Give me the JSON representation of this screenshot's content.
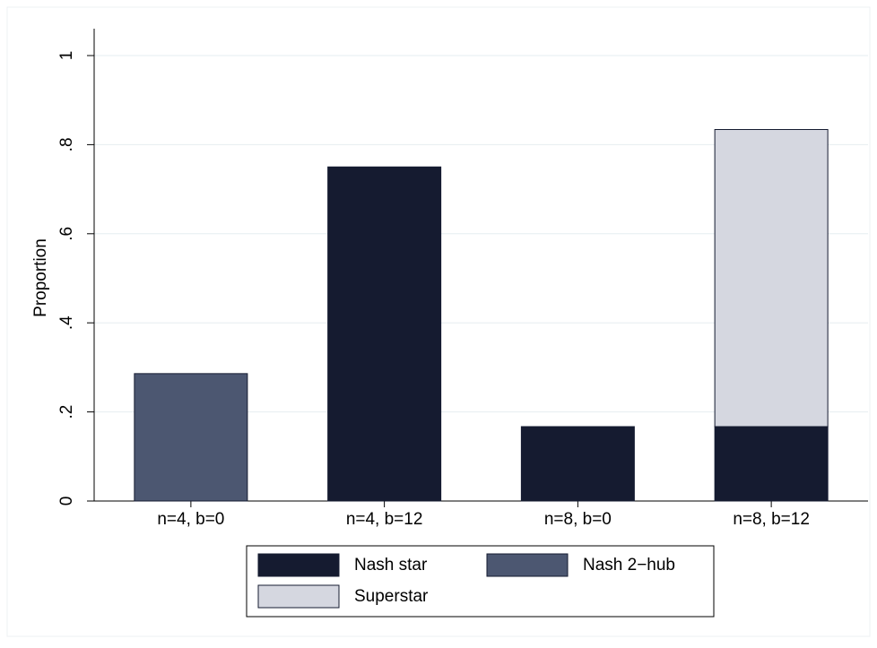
{
  "chart_data": {
    "type": "stacked_bar",
    "categories": [
      "n=4, b=0",
      "n=4, b=12",
      "n=8, b=0",
      "n=8, b=12"
    ],
    "y_label": "Proportion",
    "series": [
      {
        "name": "Nash star",
        "color": "#151b30",
        "values": [
          0,
          0.75,
          0.167,
          0.167
        ]
      },
      {
        "name": "Nash 2−hub",
        "color": "#4c5771",
        "values": [
          0.286,
          0,
          0,
          0
        ]
      },
      {
        "name": "Superstar",
        "color": "#d5d7e0",
        "values": [
          0,
          0,
          0,
          0.667
        ]
      }
    ],
    "ylim": [
      0,
      1
    ],
    "yticks": [
      {
        "value": 0,
        "label": "0"
      },
      {
        "value": 0.2,
        "label": ".2"
      },
      {
        "value": 0.4,
        "label": ".4"
      },
      {
        "value": 0.6,
        "label": ".6"
      },
      {
        "value": 0.8,
        "label": ".8"
      },
      {
        "value": 1,
        "label": "1"
      }
    ],
    "grid": true,
    "legend": "bottom"
  }
}
